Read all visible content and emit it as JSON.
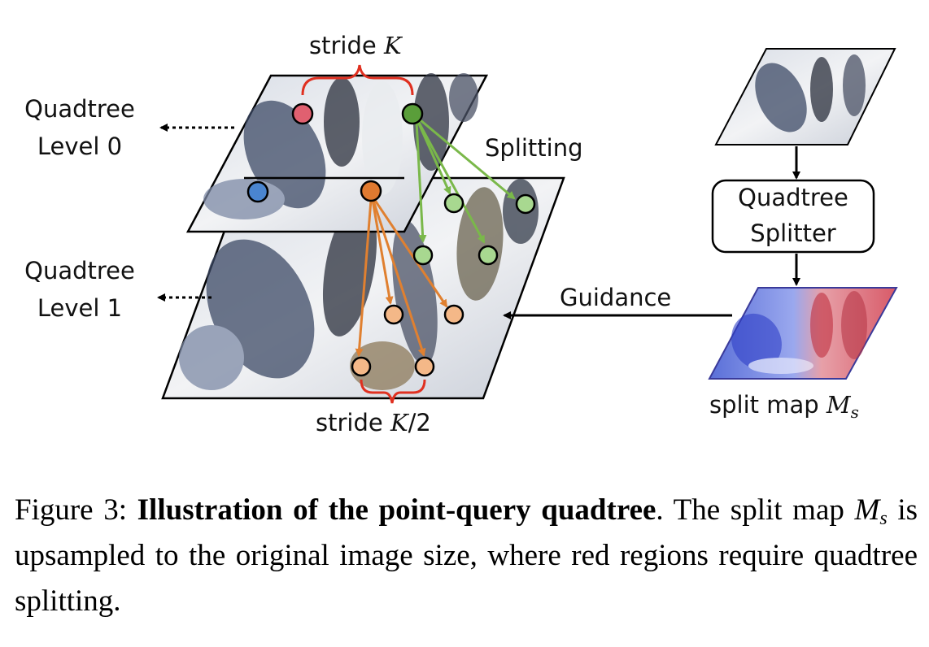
{
  "figure": {
    "stride_top": "stride",
    "stride_top_var": "K",
    "stride_bottom": "stride",
    "stride_bottom_var": "K",
    "stride_bottom_suffix": "/2",
    "level0_line1": "Quadtree",
    "level0_line2": "Level 0",
    "level1_line1": "Quadtree",
    "level1_line2": "Level 1",
    "splitting": "Splitting",
    "guidance": "Guidance",
    "splitter_line1": "Quadtree",
    "splitter_line2": "Splitter",
    "split_map_label": "split map",
    "split_map_var": "M",
    "split_map_sub": "s",
    "colors": {
      "red_point": "#e06070",
      "green_point": "#5a9e3a",
      "light_green_point": "#a8d890",
      "blue_point": "#4a85d0",
      "orange_point": "#e07a30",
      "light_orange_point": "#f4b888",
      "green_arrow": "#7ab84a",
      "orange_arrow": "#e08030",
      "brace": "#e03020"
    }
  },
  "caption": {
    "prefix": "Figure 3: ",
    "bold": "Illustration of the point-query quadtree",
    "after_bold": ". The split map ",
    "var": "M",
    "sub": "s",
    "rest": " is upsampled to the original image size, where red regions require quadtree splitting."
  }
}
